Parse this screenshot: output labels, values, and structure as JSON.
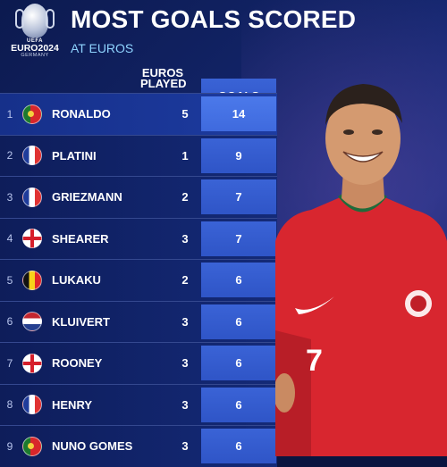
{
  "logo": {
    "uefa": "UEFA",
    "euro": "EURO2024",
    "country": "GERMANY"
  },
  "header": {
    "title": "MOST GOALS SCORED",
    "subtitle": "AT EUROS"
  },
  "columns": {
    "played": "EUROS PLAYED",
    "goals": "GOALS"
  },
  "rows": [
    {
      "rank": "1",
      "flag": "portugal-flag",
      "name": "RONALDO",
      "played": "5",
      "goals": "14"
    },
    {
      "rank": "2",
      "flag": "france-flag",
      "name": "PLATINI",
      "played": "1",
      "goals": "9"
    },
    {
      "rank": "3",
      "flag": "france-flag",
      "name": "GRIEZMANN",
      "played": "2",
      "goals": "7"
    },
    {
      "rank": "4",
      "flag": "england-flag",
      "name": "SHEARER",
      "played": "3",
      "goals": "7"
    },
    {
      "rank": "5",
      "flag": "belgium-flag",
      "name": "LUKAKU",
      "played": "2",
      "goals": "6"
    },
    {
      "rank": "6",
      "flag": "netherlands-flag",
      "name": "KLUIVERT",
      "played": "3",
      "goals": "6"
    },
    {
      "rank": "7",
      "flag": "england-flag",
      "name": "ROONEY",
      "played": "3",
      "goals": "6"
    },
    {
      "rank": "8",
      "flag": "france-flag",
      "name": "HENRY",
      "played": "3",
      "goals": "6"
    },
    {
      "rank": "9",
      "flag": "portugal-flag",
      "name": "NUNO GOMES",
      "played": "3",
      "goals": "6"
    }
  ],
  "player": {
    "shirt_number": "7"
  },
  "colors": {
    "accent": "#8fd4ff",
    "goals_cell": "#3a63d6",
    "shirt_red": "#d8262f"
  }
}
